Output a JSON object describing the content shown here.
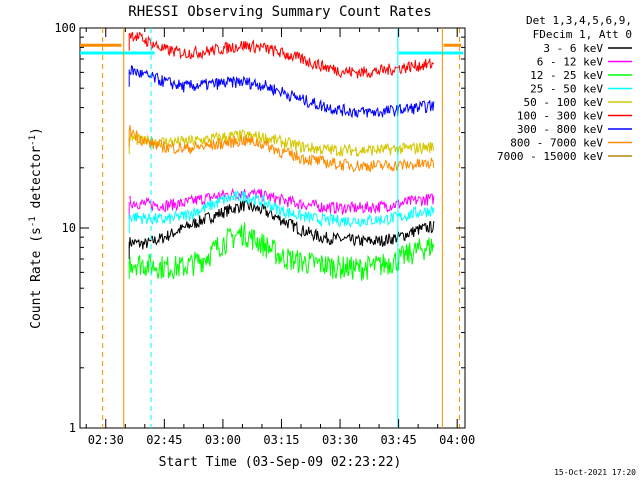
{
  "chart_data": {
    "type": "line",
    "title": "RHESSI Observing Summary Count Rates",
    "xlabel": "Start Time (03-Sep-09 02:23:22)",
    "ylabel_main": "Count Rate (s",
    "ylabel_sup1": "-1",
    "ylabel_mid": " detector",
    "ylabel_sup2": "-1",
    "ylabel_end": ")",
    "yscale": "log",
    "ylim": [
      1,
      100
    ],
    "y_ticks": [
      {
        "value": 1,
        "label": "1"
      },
      {
        "value": 10,
        "label": "10"
      },
      {
        "value": 100,
        "label": "100"
      }
    ],
    "x_unit": "minutes since 02:00",
    "xlim": [
      23.4,
      122
    ],
    "x_ticks": [
      {
        "value": 30,
        "label": "02:30"
      },
      {
        "value": 45,
        "label": "02:45"
      },
      {
        "value": 60,
        "label": "03:00"
      },
      {
        "value": 75,
        "label": "03:15"
      },
      {
        "value": 90,
        "label": "03:30"
      },
      {
        "value": 105,
        "label": "03:45"
      },
      {
        "value": 120,
        "label": "04:00"
      }
    ],
    "legend_header": [
      "Det 1,3,4,5,6,9,",
      "FDecim 1, Att 0"
    ],
    "legend_placement": "top-right outside",
    "series": [
      {
        "name": "3 - 6 keV",
        "color": "#000000",
        "x": [
          36,
          40,
          45,
          50,
          55,
          60,
          65,
          70,
          75,
          80,
          85,
          90,
          95,
          100,
          105,
          110,
          114
        ],
        "values": [
          8.5,
          8.3,
          9.0,
          10.0,
          11.0,
          12.0,
          13.0,
          12.3,
          11.0,
          9.8,
          9.0,
          8.8,
          8.6,
          8.6,
          9.0,
          9.8,
          10.2
        ]
      },
      {
        "name": "6 - 12 keV",
        "color": "#ff00ff",
        "x": [
          36,
          40,
          45,
          50,
          55,
          60,
          65,
          70,
          75,
          80,
          85,
          90,
          95,
          100,
          105,
          110,
          114
        ],
        "values": [
          13.5,
          13.2,
          13.0,
          13.3,
          14.0,
          14.6,
          15.0,
          14.6,
          13.8,
          13.2,
          12.8,
          12.6,
          12.6,
          12.8,
          13.2,
          13.8,
          14.0
        ]
      },
      {
        "name": "12 - 25 keV",
        "color": "#00ff00",
        "x": [
          36,
          40,
          45,
          50,
          55,
          60,
          65,
          70,
          75,
          80,
          85,
          90,
          95,
          100,
          105,
          110,
          114
        ],
        "values": [
          6.8,
          6.6,
          6.4,
          6.4,
          7.0,
          8.5,
          9.5,
          8.4,
          7.2,
          6.8,
          6.6,
          6.4,
          6.3,
          6.5,
          7.0,
          7.8,
          8.2
        ]
      },
      {
        "name": "25 - 50 keV",
        "color": "#00ffff",
        "x": [
          36,
          40,
          45,
          50,
          55,
          60,
          65,
          70,
          75,
          80,
          85,
          90,
          95,
          100,
          105,
          110,
          114
        ],
        "values": [
          11.5,
          11.2,
          11.0,
          11.5,
          12.5,
          13.8,
          14.5,
          13.6,
          12.2,
          11.5,
          11.0,
          10.9,
          10.9,
          11.0,
          11.3,
          12.0,
          12.3
        ]
      },
      {
        "name": "50 - 100 keV",
        "color": "#d4c800",
        "x": [
          36,
          40,
          45,
          50,
          55,
          60,
          65,
          70,
          75,
          80,
          85,
          90,
          95,
          100,
          105,
          110,
          114
        ],
        "values": [
          28.5,
          27.0,
          27.0,
          27.0,
          27.5,
          28.5,
          29.0,
          28.5,
          27.0,
          25.5,
          24.8,
          24.5,
          24.5,
          24.6,
          24.8,
          25.2,
          25.5
        ]
      },
      {
        "name": "100 - 300 keV",
        "color": "#ff0000",
        "x": [
          36,
          40,
          45,
          50,
          55,
          60,
          65,
          70,
          75,
          80,
          85,
          90,
          95,
          100,
          105,
          110,
          114
        ],
        "values": [
          94,
          87,
          78,
          75,
          76,
          79,
          82,
          80,
          75,
          70,
          65,
          61,
          60,
          61,
          63,
          65,
          66
        ]
      },
      {
        "name": "300 - 800 keV",
        "color": "#0000ff",
        "x": [
          36,
          40,
          45,
          50,
          55,
          60,
          65,
          70,
          75,
          80,
          85,
          90,
          95,
          100,
          105,
          110,
          114
        ],
        "values": [
          62,
          58,
          54,
          51,
          52,
          53,
          54,
          52,
          48,
          44,
          41,
          39,
          38,
          38,
          39,
          40,
          41
        ]
      },
      {
        "name": "800 - 7000 keV",
        "color": "#ff8c00",
        "x": [
          36,
          40,
          45,
          50,
          55,
          60,
          65,
          70,
          75,
          80,
          85,
          90,
          95,
          100,
          105,
          110,
          114
        ],
        "values": [
          31,
          27,
          25.5,
          25,
          25.5,
          26.5,
          27.5,
          26.5,
          24,
          22.5,
          21.5,
          20.8,
          20.5,
          20.5,
          20.6,
          20.8,
          21
        ]
      },
      {
        "name": "7000 - 15000 keV",
        "color": "#b8860b",
        "x": [],
        "values": []
      }
    ],
    "gaps_before": [
      {
        "color": "#ff8c00",
        "x": [
          23.4,
          34
        ],
        "value": 82
      },
      {
        "color": "#00ffff",
        "x": [
          23.4,
          42.5
        ],
        "value": 75
      }
    ],
    "gaps_after": [
      {
        "color": "#ff8c00",
        "x": [
          116.5,
          121
        ],
        "value": 82
      },
      {
        "color": "#00ffff",
        "x": [
          105,
          121.5
        ],
        "value": 75
      }
    ],
    "vertical_markers": [
      {
        "x": 29.2,
        "color": "#ff8c00",
        "dashed": true
      },
      {
        "x": 34.6,
        "color": "#ff8c00",
        "dashed": false
      },
      {
        "x": 41.6,
        "color": "#00ffff",
        "dashed": true
      },
      {
        "x": 104.8,
        "color": "#00ffff",
        "dashed": false
      },
      {
        "x": 116.2,
        "color": "#ff8c00",
        "dashed": false
      },
      {
        "x": 120.6,
        "color": "#ff8c00",
        "dashed": true
      }
    ]
  },
  "footer_timestamp": "15-Oct-2021 17:20"
}
